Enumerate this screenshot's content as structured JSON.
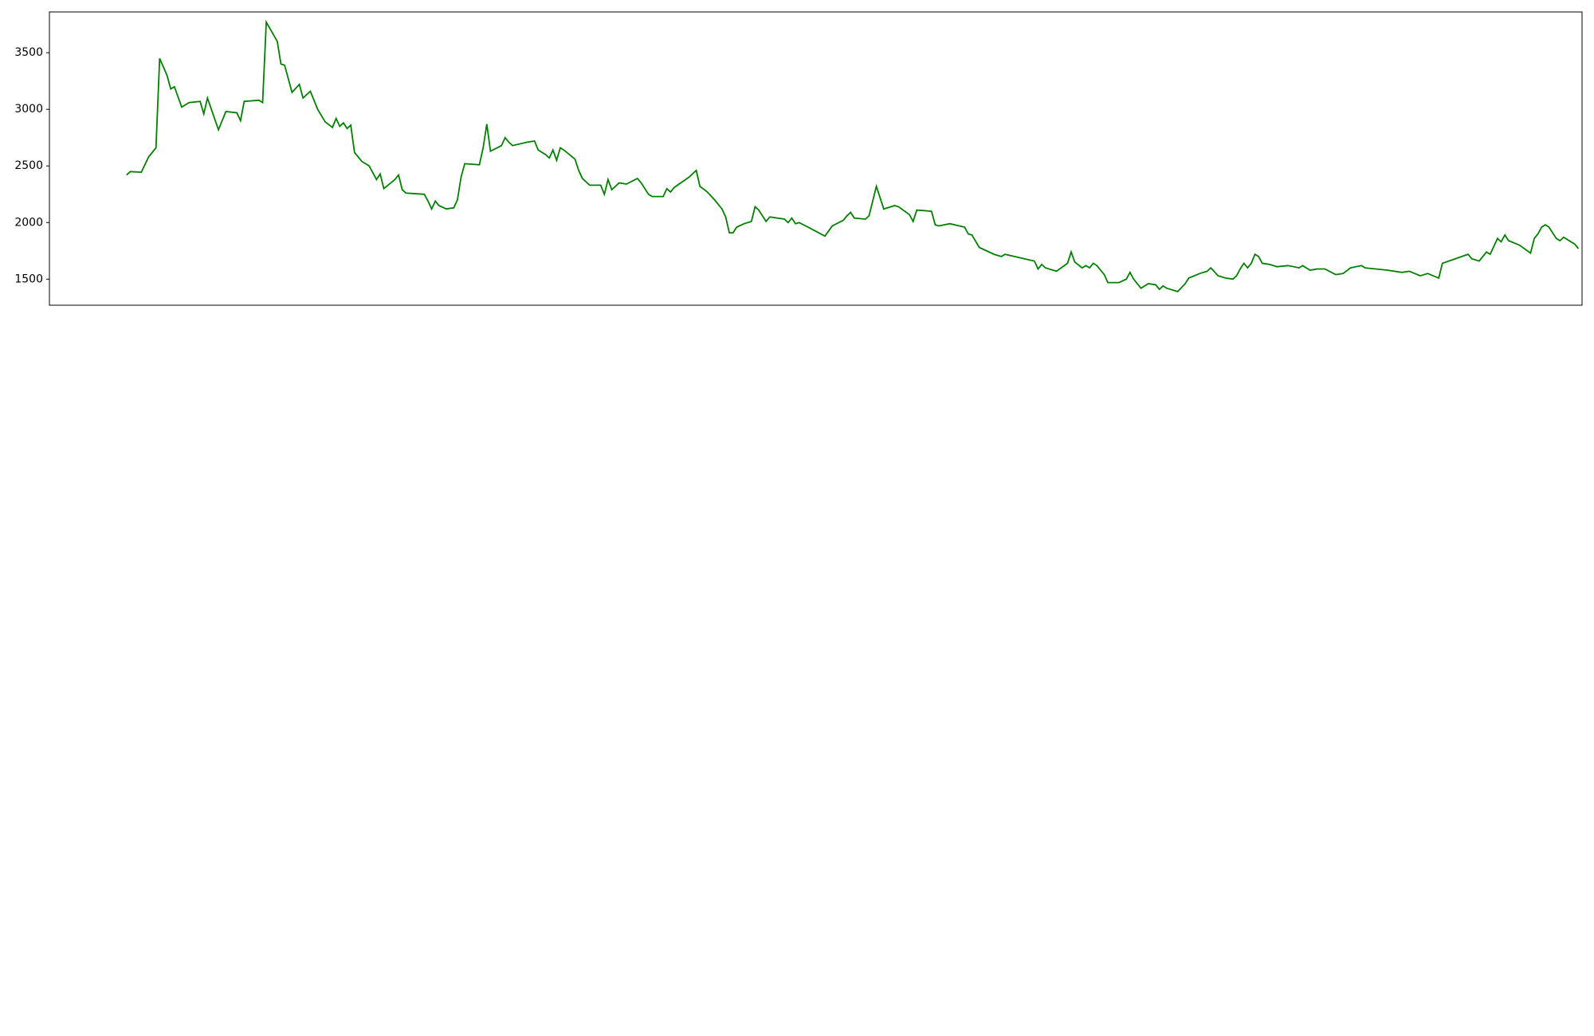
{
  "colors": {
    "price_line": "#008000",
    "up_bar": "#ff0000",
    "down_bar": "#0000ff",
    "macd_line": "#000000",
    "signal_line": "#ffa500",
    "band_fill": "#d3d3d3",
    "over_fill": "#ff0000",
    "under_fill": "#0000ff"
  },
  "chart_data": [
    {
      "type": "line",
      "id": "price",
      "ylim": [
        1270,
        3860
      ],
      "yticks": [
        "1500",
        "2000",
        "2500",
        "3000",
        "3500"
      ],
      "x_range": [
        "2023-01-27",
        "2024-03-19"
      ],
      "series": [
        {
          "values_pts": [
            [
              "2023-02-17",
              2420
            ],
            [
              "2023-02-18",
              2450
            ],
            [
              "2023-02-21",
              2445
            ],
            [
              "2023-02-23",
              2580
            ],
            [
              "2023-02-25",
              2660
            ],
            [
              "2023-02-26",
              3450
            ],
            [
              "2023-02-28",
              3300
            ],
            [
              "2023-03-01",
              3180
            ],
            [
              "2023-03-02",
              3200
            ],
            [
              "2023-03-04",
              3020
            ],
            [
              "2023-03-06",
              3060
            ],
            [
              "2023-03-09",
              3070
            ],
            [
              "2023-03-10",
              2960
            ],
            [
              "2023-03-11",
              3100
            ],
            [
              "2023-03-14",
              2820
            ],
            [
              "2023-03-16",
              2980
            ],
            [
              "2023-03-19",
              2970
            ],
            [
              "2023-03-20",
              2900
            ],
            [
              "2023-03-21",
              3070
            ],
            [
              "2023-03-25",
              3080
            ],
            [
              "2023-03-26",
              3060
            ],
            [
              "2023-03-27",
              3770
            ],
            [
              "2023-03-30",
              3600
            ],
            [
              "2023-03-31",
              3400
            ],
            [
              "2023-04-01",
              3390
            ],
            [
              "2023-04-03",
              3150
            ],
            [
              "2023-04-05",
              3220
            ],
            [
              "2023-04-06",
              3100
            ],
            [
              "2023-04-08",
              3160
            ],
            [
              "2023-04-10",
              3000
            ],
            [
              "2023-04-12",
              2890
            ],
            [
              "2023-04-14",
              2840
            ],
            [
              "2023-04-15",
              2920
            ],
            [
              "2023-04-16",
              2850
            ],
            [
              "2023-04-17",
              2880
            ],
            [
              "2023-04-18",
              2830
            ],
            [
              "2023-04-19",
              2860
            ],
            [
              "2023-04-20",
              2620
            ],
            [
              "2023-04-22",
              2540
            ],
            [
              "2023-04-24",
              2500
            ],
            [
              "2023-04-26",
              2380
            ],
            [
              "2023-04-27",
              2430
            ],
            [
              "2023-04-28",
              2300
            ],
            [
              "2023-05-01",
              2380
            ],
            [
              "2023-05-02",
              2420
            ],
            [
              "2023-05-03",
              2290
            ],
            [
              "2023-05-04",
              2260
            ],
            [
              "2023-05-09",
              2250
            ],
            [
              "2023-05-10",
              2190
            ],
            [
              "2023-05-11",
              2120
            ],
            [
              "2023-05-12",
              2190
            ],
            [
              "2023-05-13",
              2150
            ],
            [
              "2023-05-15",
              2120
            ],
            [
              "2023-05-17",
              2130
            ],
            [
              "2023-05-18",
              2200
            ],
            [
              "2023-05-19",
              2400
            ],
            [
              "2023-05-20",
              2520
            ],
            [
              "2023-05-24",
              2510
            ],
            [
              "2023-05-25",
              2660
            ],
            [
              "2023-05-26",
              2870
            ],
            [
              "2023-05-27",
              2630
            ],
            [
              "2023-05-30",
              2680
            ],
            [
              "2023-05-31",
              2750
            ],
            [
              "2023-06-01",
              2710
            ],
            [
              "2023-06-02",
              2680
            ],
            [
              "2023-06-06",
              2710
            ],
            [
              "2023-06-08",
              2720
            ],
            [
              "2023-06-09",
              2640
            ],
            [
              "2023-06-11",
              2600
            ],
            [
              "2023-06-12",
              2570
            ],
            [
              "2023-06-13",
              2640
            ],
            [
              "2023-06-14",
              2550
            ],
            [
              "2023-06-15",
              2660
            ],
            [
              "2023-06-16",
              2640
            ],
            [
              "2023-06-19",
              2560
            ],
            [
              "2023-06-20",
              2460
            ],
            [
              "2023-06-21",
              2390
            ],
            [
              "2023-06-23",
              2330
            ],
            [
              "2023-06-26",
              2330
            ],
            [
              "2023-06-27",
              2250
            ],
            [
              "2023-06-28",
              2380
            ],
            [
              "2023-06-29",
              2290
            ],
            [
              "2023-07-01",
              2350
            ],
            [
              "2023-07-03",
              2340
            ],
            [
              "2023-07-06",
              2390
            ],
            [
              "2023-07-07",
              2350
            ],
            [
              "2023-07-09",
              2250
            ],
            [
              "2023-07-10",
              2230
            ],
            [
              "2023-07-13",
              2230
            ],
            [
              "2023-07-14",
              2300
            ],
            [
              "2023-07-15",
              2270
            ],
            [
              "2023-07-16",
              2310
            ],
            [
              "2023-07-20",
              2400
            ],
            [
              "2023-07-22",
              2460
            ],
            [
              "2023-07-23",
              2320
            ],
            [
              "2023-07-25",
              2270
            ],
            [
              "2023-07-27",
              2200
            ],
            [
              "2023-07-29",
              2120
            ],
            [
              "2023-07-30",
              2050
            ],
            [
              "2023-07-31",
              1910
            ],
            [
              "2023-08-01",
              1910
            ],
            [
              "2023-08-02",
              1960
            ],
            [
              "2023-08-04",
              1990
            ],
            [
              "2023-08-06",
              2010
            ],
            [
              "2023-08-07",
              2140
            ],
            [
              "2023-08-08",
              2110
            ],
            [
              "2023-08-10",
              2010
            ],
            [
              "2023-08-11",
              2050
            ],
            [
              "2023-08-15",
              2030
            ],
            [
              "2023-08-16",
              2000
            ],
            [
              "2023-08-17",
              2040
            ],
            [
              "2023-08-18",
              1990
            ],
            [
              "2023-08-19",
              2000
            ],
            [
              "2023-08-22",
              1950
            ],
            [
              "2023-08-26",
              1880
            ],
            [
              "2023-08-28",
              1970
            ],
            [
              "2023-08-31",
              2020
            ],
            [
              "2023-09-01",
              2060
            ],
            [
              "2023-09-02",
              2090
            ],
            [
              "2023-09-03",
              2040
            ],
            [
              "2023-09-06",
              2030
            ],
            [
              "2023-09-07",
              2060
            ],
            [
              "2023-09-09",
              2320
            ],
            [
              "2023-09-11",
              2120
            ],
            [
              "2023-09-14",
              2150
            ],
            [
              "2023-09-15",
              2140
            ],
            [
              "2023-09-18",
              2070
            ],
            [
              "2023-09-19",
              2010
            ],
            [
              "2023-09-20",
              2110
            ],
            [
              "2023-09-24",
              2100
            ],
            [
              "2023-09-25",
              1980
            ],
            [
              "2023-09-26",
              1970
            ],
            [
              "2023-09-29",
              1990
            ],
            [
              "2023-10-03",
              1960
            ],
            [
              "2023-10-04",
              1900
            ],
            [
              "2023-10-05",
              1890
            ],
            [
              "2023-10-07",
              1780
            ],
            [
              "2023-10-11",
              1720
            ],
            [
              "2023-10-13",
              1700
            ],
            [
              "2023-10-14",
              1720
            ],
            [
              "2023-10-22",
              1660
            ],
            [
              "2023-10-23",
              1590
            ],
            [
              "2023-10-24",
              1630
            ],
            [
              "2023-10-25",
              1600
            ],
            [
              "2023-10-28",
              1570
            ],
            [
              "2023-10-31",
              1640
            ],
            [
              "2023-11-01",
              1740
            ],
            [
              "2023-11-02",
              1650
            ],
            [
              "2023-11-04",
              1600
            ],
            [
              "2023-11-05",
              1620
            ],
            [
              "2023-11-06",
              1600
            ],
            [
              "2023-11-07",
              1640
            ],
            [
              "2023-11-08",
              1620
            ],
            [
              "2023-11-10",
              1540
            ],
            [
              "2023-11-11",
              1470
            ],
            [
              "2023-11-14",
              1470
            ],
            [
              "2023-11-16",
              1500
            ],
            [
              "2023-11-17",
              1560
            ],
            [
              "2023-11-18",
              1500
            ],
            [
              "2023-11-20",
              1420
            ],
            [
              "2023-11-22",
              1460
            ],
            [
              "2023-11-24",
              1450
            ],
            [
              "2023-11-25",
              1410
            ],
            [
              "2023-11-26",
              1440
            ],
            [
              "2023-11-27",
              1420
            ],
            [
              "2023-11-30",
              1390
            ],
            [
              "2023-12-02",
              1460
            ],
            [
              "2023-12-03",
              1510
            ],
            [
              "2023-12-06",
              1550
            ],
            [
              "2023-12-08",
              1570
            ],
            [
              "2023-12-09",
              1600
            ],
            [
              "2023-12-11",
              1530
            ],
            [
              "2023-12-13",
              1510
            ],
            [
              "2023-12-15",
              1500
            ],
            [
              "2023-12-16",
              1530
            ],
            [
              "2023-12-17",
              1590
            ],
            [
              "2023-12-18",
              1640
            ],
            [
              "2023-12-19",
              1600
            ],
            [
              "2023-12-20",
              1640
            ],
            [
              "2023-12-21",
              1720
            ],
            [
              "2023-12-22",
              1700
            ],
            [
              "2023-12-23",
              1640
            ],
            [
              "2023-12-25",
              1630
            ],
            [
              "2023-12-27",
              1610
            ],
            [
              "2023-12-30",
              1620
            ],
            [
              "2024-01-02",
              1600
            ],
            [
              "2024-01-03",
              1620
            ],
            [
              "2024-01-05",
              1580
            ],
            [
              "2024-01-07",
              1590
            ],
            [
              "2024-01-09",
              1590
            ],
            [
              "2024-01-12",
              1540
            ],
            [
              "2024-01-14",
              1550
            ],
            [
              "2024-01-16",
              1600
            ],
            [
              "2024-01-19",
              1620
            ],
            [
              "2024-01-20",
              1600
            ],
            [
              "2024-01-26",
              1580
            ],
            [
              "2024-01-30",
              1560
            ],
            [
              "2024-02-01",
              1570
            ],
            [
              "2024-02-04",
              1530
            ],
            [
              "2024-02-06",
              1550
            ],
            [
              "2024-02-09",
              1510
            ],
            [
              "2024-02-10",
              1640
            ],
            [
              "2024-02-17",
              1720
            ],
            [
              "2024-02-18",
              1680
            ],
            [
              "2024-02-20",
              1660
            ],
            [
              "2024-02-22",
              1740
            ],
            [
              "2024-02-23",
              1720
            ],
            [
              "2024-02-25",
              1860
            ],
            [
              "2024-02-26",
              1830
            ],
            [
              "2024-02-27",
              1890
            ],
            [
              "2024-02-28",
              1840
            ],
            [
              "2024-03-02",
              1800
            ],
            [
              "2024-03-05",
              1730
            ],
            [
              "2024-03-06",
              1860
            ],
            [
              "2024-03-07",
              1900
            ],
            [
              "2024-03-08",
              1960
            ],
            [
              "2024-03-09",
              1980
            ],
            [
              "2024-03-10",
              1960
            ],
            [
              "2024-03-11",
              1910
            ],
            [
              "2024-03-12",
              1860
            ],
            [
              "2024-03-13",
              1840
            ],
            [
              "2024-03-14",
              1870
            ],
            [
              "2024-03-17",
              1810
            ],
            [
              "2024-03-18",
              1770
            ]
          ]
        }
      ]
    }
  ]
}
